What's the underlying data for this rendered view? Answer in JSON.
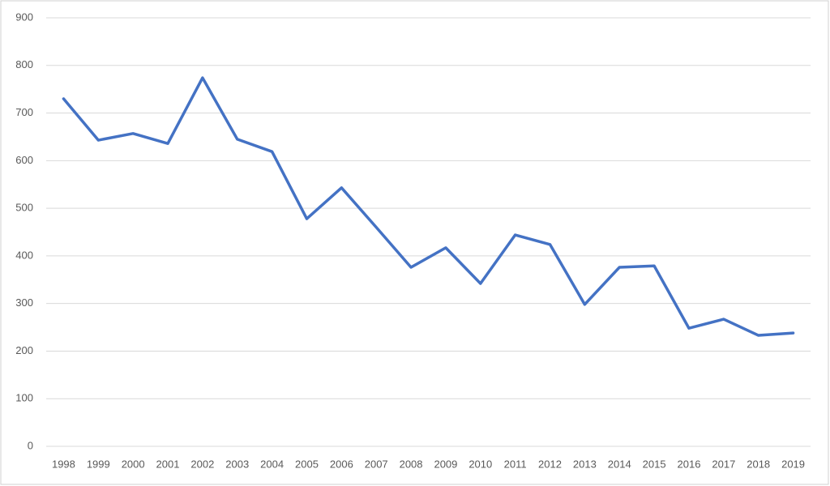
{
  "chart_data": {
    "type": "line",
    "categories": [
      "1998",
      "1999",
      "2000",
      "2001",
      "2002",
      "2003",
      "2004",
      "2005",
      "2006",
      "2007",
      "2008",
      "2009",
      "2010",
      "2011",
      "2012",
      "2013",
      "2014",
      "2015",
      "2016",
      "2017",
      "2018",
      "2019"
    ],
    "values": [
      730,
      643,
      657,
      636,
      774,
      645,
      619,
      478,
      543,
      460,
      376,
      417,
      342,
      444,
      424,
      298,
      376,
      379,
      248,
      267,
      233,
      238
    ],
    "color": "#4472c4",
    "ylim": [
      0,
      900
    ],
    "yticks": [
      0,
      100,
      200,
      300,
      400,
      500,
      600,
      700,
      800,
      900
    ],
    "grid": true
  }
}
